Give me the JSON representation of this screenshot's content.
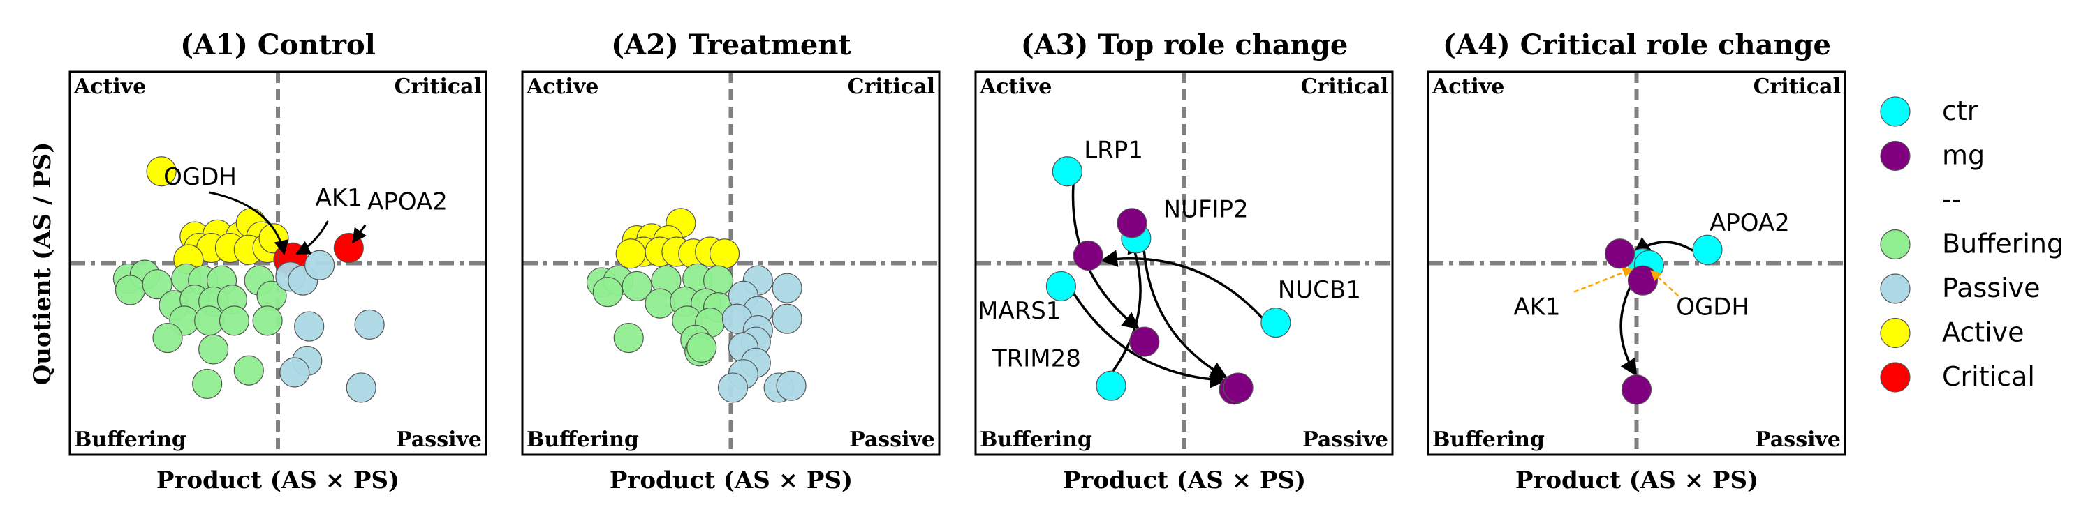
{
  "figure": {
    "ylabel": "Quotient (AS / PS)",
    "xlabel": "Product (AS × PS)"
  },
  "quadrants": {
    "active": "Active",
    "critical": "Critical",
    "buffering": "Buffering",
    "passive": "Passive"
  },
  "colors": {
    "buffering": "#90EE90",
    "passive": "#ADD8E6",
    "active": "#FFFF00",
    "critical": "#FF0000",
    "ctr": "#00FFFF",
    "mg": "#800080",
    "divider": "#808080",
    "annotation_arrow": "#FFA500"
  },
  "legend": [
    {
      "label": "ctr",
      "color": "#00FFFF"
    },
    {
      "label": "mg",
      "color": "#800080"
    },
    {
      "label": "--",
      "color": null
    },
    {
      "label": "Buffering",
      "color": "#90EE90"
    },
    {
      "label": "Passive",
      "color": "#ADD8E6"
    },
    {
      "label": "Active",
      "color": "#FFFF00"
    },
    {
      "label": "Critical",
      "color": "#FF0000"
    }
  ],
  "chart_data": [
    {
      "type": "scatter",
      "title": "(A1) Control",
      "xlabel": "Product (AS × PS)",
      "ylabel": "Quotient (AS / PS)",
      "xlim": [
        -1,
        1
      ],
      "ylim": [
        -1,
        1
      ],
      "grid": false,
      "points": [
        {
          "x": -0.56,
          "y": 0.48,
          "cls": "active"
        },
        {
          "x": -0.4,
          "y": 0.14,
          "cls": "active"
        },
        {
          "x": -0.29,
          "y": 0.15,
          "cls": "active"
        },
        {
          "x": -0.18,
          "y": 0.14,
          "cls": "active"
        },
        {
          "x": -0.13,
          "y": 0.21,
          "cls": "active"
        },
        {
          "x": -0.08,
          "y": 0.14,
          "cls": "active"
        },
        {
          "x": -0.38,
          "y": 0.08,
          "cls": "active"
        },
        {
          "x": -0.32,
          "y": 0.08,
          "cls": "active"
        },
        {
          "x": -0.23,
          "y": 0.08,
          "cls": "active"
        },
        {
          "x": -0.14,
          "y": 0.07,
          "cls": "active"
        },
        {
          "x": -0.05,
          "y": 0.08,
          "cls": "active"
        },
        {
          "x": -0.02,
          "y": 0.13,
          "cls": "active"
        },
        {
          "x": -0.43,
          "y": 0.02,
          "cls": "active"
        },
        {
          "x": 0.05,
          "y": 0.02,
          "cls": "critical",
          "label": "OGDH"
        },
        {
          "x": 0.07,
          "y": 0.03,
          "cls": "critical",
          "label": "AK1"
        },
        {
          "x": 0.34,
          "y": 0.08,
          "cls": "critical",
          "label": "APOA2"
        },
        {
          "x": -0.72,
          "y": -0.08,
          "cls": "buffering"
        },
        {
          "x": -0.64,
          "y": -0.06,
          "cls": "buffering"
        },
        {
          "x": -0.71,
          "y": -0.14,
          "cls": "buffering"
        },
        {
          "x": -0.58,
          "y": -0.11,
          "cls": "buffering"
        },
        {
          "x": -0.44,
          "y": -0.08,
          "cls": "buffering"
        },
        {
          "x": -0.36,
          "y": -0.09,
          "cls": "buffering"
        },
        {
          "x": -0.27,
          "y": -0.09,
          "cls": "buffering"
        },
        {
          "x": -0.09,
          "y": -0.09,
          "cls": "buffering"
        },
        {
          "x": -0.5,
          "y": -0.22,
          "cls": "buffering"
        },
        {
          "x": -0.4,
          "y": -0.19,
          "cls": "buffering"
        },
        {
          "x": -0.31,
          "y": -0.2,
          "cls": "buffering"
        },
        {
          "x": -0.22,
          "y": -0.19,
          "cls": "buffering"
        },
        {
          "x": -0.03,
          "y": -0.17,
          "cls": "buffering"
        },
        {
          "x": -0.45,
          "y": -0.3,
          "cls": "buffering"
        },
        {
          "x": -0.33,
          "y": -0.3,
          "cls": "buffering"
        },
        {
          "x": -0.21,
          "y": -0.3,
          "cls": "buffering"
        },
        {
          "x": -0.05,
          "y": -0.3,
          "cls": "buffering"
        },
        {
          "x": -0.53,
          "y": -0.39,
          "cls": "buffering"
        },
        {
          "x": -0.31,
          "y": -0.45,
          "cls": "buffering"
        },
        {
          "x": -0.14,
          "y": -0.56,
          "cls": "buffering"
        },
        {
          "x": -0.34,
          "y": -0.63,
          "cls": "buffering"
        },
        {
          "x": 0.06,
          "y": -0.07,
          "cls": "passive"
        },
        {
          "x": 0.12,
          "y": -0.09,
          "cls": "passive"
        },
        {
          "x": 0.2,
          "y": -0.01,
          "cls": "passive"
        },
        {
          "x": 0.15,
          "y": -0.33,
          "cls": "passive"
        },
        {
          "x": 0.44,
          "y": -0.32,
          "cls": "passive"
        },
        {
          "x": 0.14,
          "y": -0.51,
          "cls": "passive"
        },
        {
          "x": 0.08,
          "y": -0.57,
          "cls": "passive"
        },
        {
          "x": 0.4,
          "y": -0.65,
          "cls": "passive"
        }
      ],
      "annotations": [
        {
          "text": "OGDH",
          "x": -0.55,
          "y": 0.41
        },
        {
          "text": "AK1",
          "x": 0.18,
          "y": 0.3
        },
        {
          "text": "APOA2",
          "x": 0.43,
          "y": 0.28
        }
      ]
    },
    {
      "type": "scatter",
      "title": "(A2) Treatment",
      "xlabel": "Product (AS × PS)",
      "ylabel": "",
      "xlim": [
        -1,
        1
      ],
      "ylim": [
        -1,
        1
      ],
      "grid": false,
      "points": [
        {
          "x": -0.24,
          "y": 0.21,
          "cls": "active"
        },
        {
          "x": -0.45,
          "y": 0.12,
          "cls": "active"
        },
        {
          "x": -0.38,
          "y": 0.13,
          "cls": "active"
        },
        {
          "x": -0.3,
          "y": 0.12,
          "cls": "active"
        },
        {
          "x": -0.42,
          "y": 0.06,
          "cls": "active"
        },
        {
          "x": -0.34,
          "y": 0.06,
          "cls": "active"
        },
        {
          "x": -0.26,
          "y": 0.06,
          "cls": "active"
        },
        {
          "x": -0.18,
          "y": 0.05,
          "cls": "active"
        },
        {
          "x": -0.1,
          "y": 0.06,
          "cls": "active"
        },
        {
          "x": -0.03,
          "y": 0.05,
          "cls": "active"
        },
        {
          "x": -0.48,
          "y": 0.05,
          "cls": "active"
        },
        {
          "x": -0.62,
          "y": -0.1,
          "cls": "buffering"
        },
        {
          "x": -0.54,
          "y": -0.09,
          "cls": "buffering"
        },
        {
          "x": -0.45,
          "y": -0.12,
          "cls": "buffering"
        },
        {
          "x": -0.31,
          "y": -0.09,
          "cls": "buffering"
        },
        {
          "x": -0.16,
          "y": -0.08,
          "cls": "buffering"
        },
        {
          "x": -0.06,
          "y": -0.09,
          "cls": "buffering"
        },
        {
          "x": -0.59,
          "y": -0.15,
          "cls": "buffering"
        },
        {
          "x": -0.34,
          "y": -0.21,
          "cls": "buffering"
        },
        {
          "x": -0.22,
          "y": -0.2,
          "cls": "buffering"
        },
        {
          "x": -0.12,
          "y": -0.21,
          "cls": "buffering"
        },
        {
          "x": -0.06,
          "y": -0.23,
          "cls": "buffering"
        },
        {
          "x": -0.21,
          "y": -0.3,
          "cls": "buffering"
        },
        {
          "x": -0.1,
          "y": -0.31,
          "cls": "buffering"
        },
        {
          "x": -0.49,
          "y": -0.39,
          "cls": "buffering"
        },
        {
          "x": -0.17,
          "y": -0.4,
          "cls": "buffering"
        },
        {
          "x": -0.15,
          "y": -0.46,
          "cls": "buffering"
        },
        {
          "x": -0.14,
          "y": -0.44,
          "cls": "buffering"
        },
        {
          "x": 0.13,
          "y": -0.09,
          "cls": "passive"
        },
        {
          "x": 0.06,
          "y": -0.17,
          "cls": "passive"
        },
        {
          "x": 0.13,
          "y": -0.25,
          "cls": "passive"
        },
        {
          "x": 0.03,
          "y": -0.29,
          "cls": "passive"
        },
        {
          "x": 0.27,
          "y": -0.13,
          "cls": "passive"
        },
        {
          "x": 0.27,
          "y": -0.29,
          "cls": "passive"
        },
        {
          "x": 0.13,
          "y": -0.35,
          "cls": "passive"
        },
        {
          "x": 0.12,
          "y": -0.41,
          "cls": "passive"
        },
        {
          "x": 0.06,
          "y": -0.44,
          "cls": "passive"
        },
        {
          "x": 0.12,
          "y": -0.52,
          "cls": "passive"
        },
        {
          "x": 0.06,
          "y": -0.58,
          "cls": "passive"
        },
        {
          "x": 0.01,
          "y": -0.65,
          "cls": "passive"
        },
        {
          "x": 0.23,
          "y": -0.65,
          "cls": "passive"
        },
        {
          "x": 0.29,
          "y": -0.64,
          "cls": "passive"
        }
      ],
      "annotations": []
    },
    {
      "type": "scatter",
      "title": "(A3) Top role change",
      "xlabel": "Product (AS × PS)",
      "ylabel": "",
      "xlim": [
        -1,
        1
      ],
      "ylim": [
        -1,
        1
      ],
      "grid": false,
      "points": [
        {
          "x": -0.56,
          "y": 0.48,
          "cls": "ctr"
        },
        {
          "x": -0.23,
          "y": 0.13,
          "cls": "ctr"
        },
        {
          "x": -0.59,
          "y": -0.12,
          "cls": "ctr"
        },
        {
          "x": 0.44,
          "y": -0.31,
          "cls": "ctr"
        },
        {
          "x": -0.35,
          "y": -0.64,
          "cls": "ctr"
        },
        {
          "x": -0.25,
          "y": 0.21,
          "cls": "mg"
        },
        {
          "x": -0.46,
          "y": 0.04,
          "cls": "mg"
        },
        {
          "x": -0.19,
          "y": -0.41,
          "cls": "mg"
        },
        {
          "x": 0.24,
          "y": -0.66,
          "cls": "mg"
        },
        {
          "x": 0.26,
          "y": -0.65,
          "cls": "mg"
        }
      ],
      "annotations": [
        {
          "text": "LRP1",
          "x": -0.48,
          "y": 0.55
        },
        {
          "text": "NUFIP2",
          "x": -0.1,
          "y": 0.24
        },
        {
          "text": "NUCB1",
          "x": 0.45,
          "y": -0.18
        },
        {
          "text": "MARS1",
          "x": -0.99,
          "y": -0.29
        },
        {
          "text": "TRIM28",
          "x": -0.92,
          "y": -0.54
        }
      ],
      "arrows": [
        {
          "from": [
            -0.56,
            0.48
          ],
          "to": [
            -0.19,
            -0.41
          ]
        },
        {
          "from": [
            -0.35,
            -0.64
          ],
          "to": [
            -0.25,
            0.21
          ]
        },
        {
          "from": [
            0.44,
            -0.31
          ],
          "to": [
            -0.46,
            0.04
          ]
        },
        {
          "from": [
            -0.23,
            0.13
          ],
          "to": [
            0.24,
            -0.66
          ]
        },
        {
          "from": [
            -0.59,
            -0.12
          ],
          "to": [
            0.26,
            -0.65
          ]
        }
      ]
    },
    {
      "type": "scatter",
      "title": "(A4) Critical role change",
      "xlabel": "Product (AS × PS)",
      "ylabel": "",
      "xlim": [
        -1,
        1
      ],
      "ylim": [
        -1,
        1
      ],
      "grid": false,
      "points": [
        {
          "x": 0.34,
          "y": 0.07,
          "cls": "ctr"
        },
        {
          "x": 0.03,
          "y": 0.0,
          "cls": "ctr"
        },
        {
          "x": 0.06,
          "y": -0.01,
          "cls": "ctr"
        },
        {
          "x": -0.08,
          "y": 0.05,
          "cls": "mg"
        },
        {
          "x": 0.03,
          "y": -0.09,
          "cls": "mg"
        },
        {
          "x": 0.0,
          "y": -0.66,
          "cls": "mg"
        }
      ],
      "annotations": [
        {
          "text": "APOA2",
          "x": 0.35,
          "y": 0.17
        },
        {
          "text": "AK1",
          "x": -0.59,
          "y": -0.27
        },
        {
          "text": "OGDH",
          "x": 0.19,
          "y": -0.27
        }
      ],
      "arrows": [
        {
          "from": [
            0.34,
            0.07
          ],
          "to": [
            -0.08,
            0.05
          ]
        },
        {
          "from": [
            -0.02,
            -0.02
          ],
          "to": [
            0.0,
            -0.66
          ]
        }
      ]
    }
  ]
}
